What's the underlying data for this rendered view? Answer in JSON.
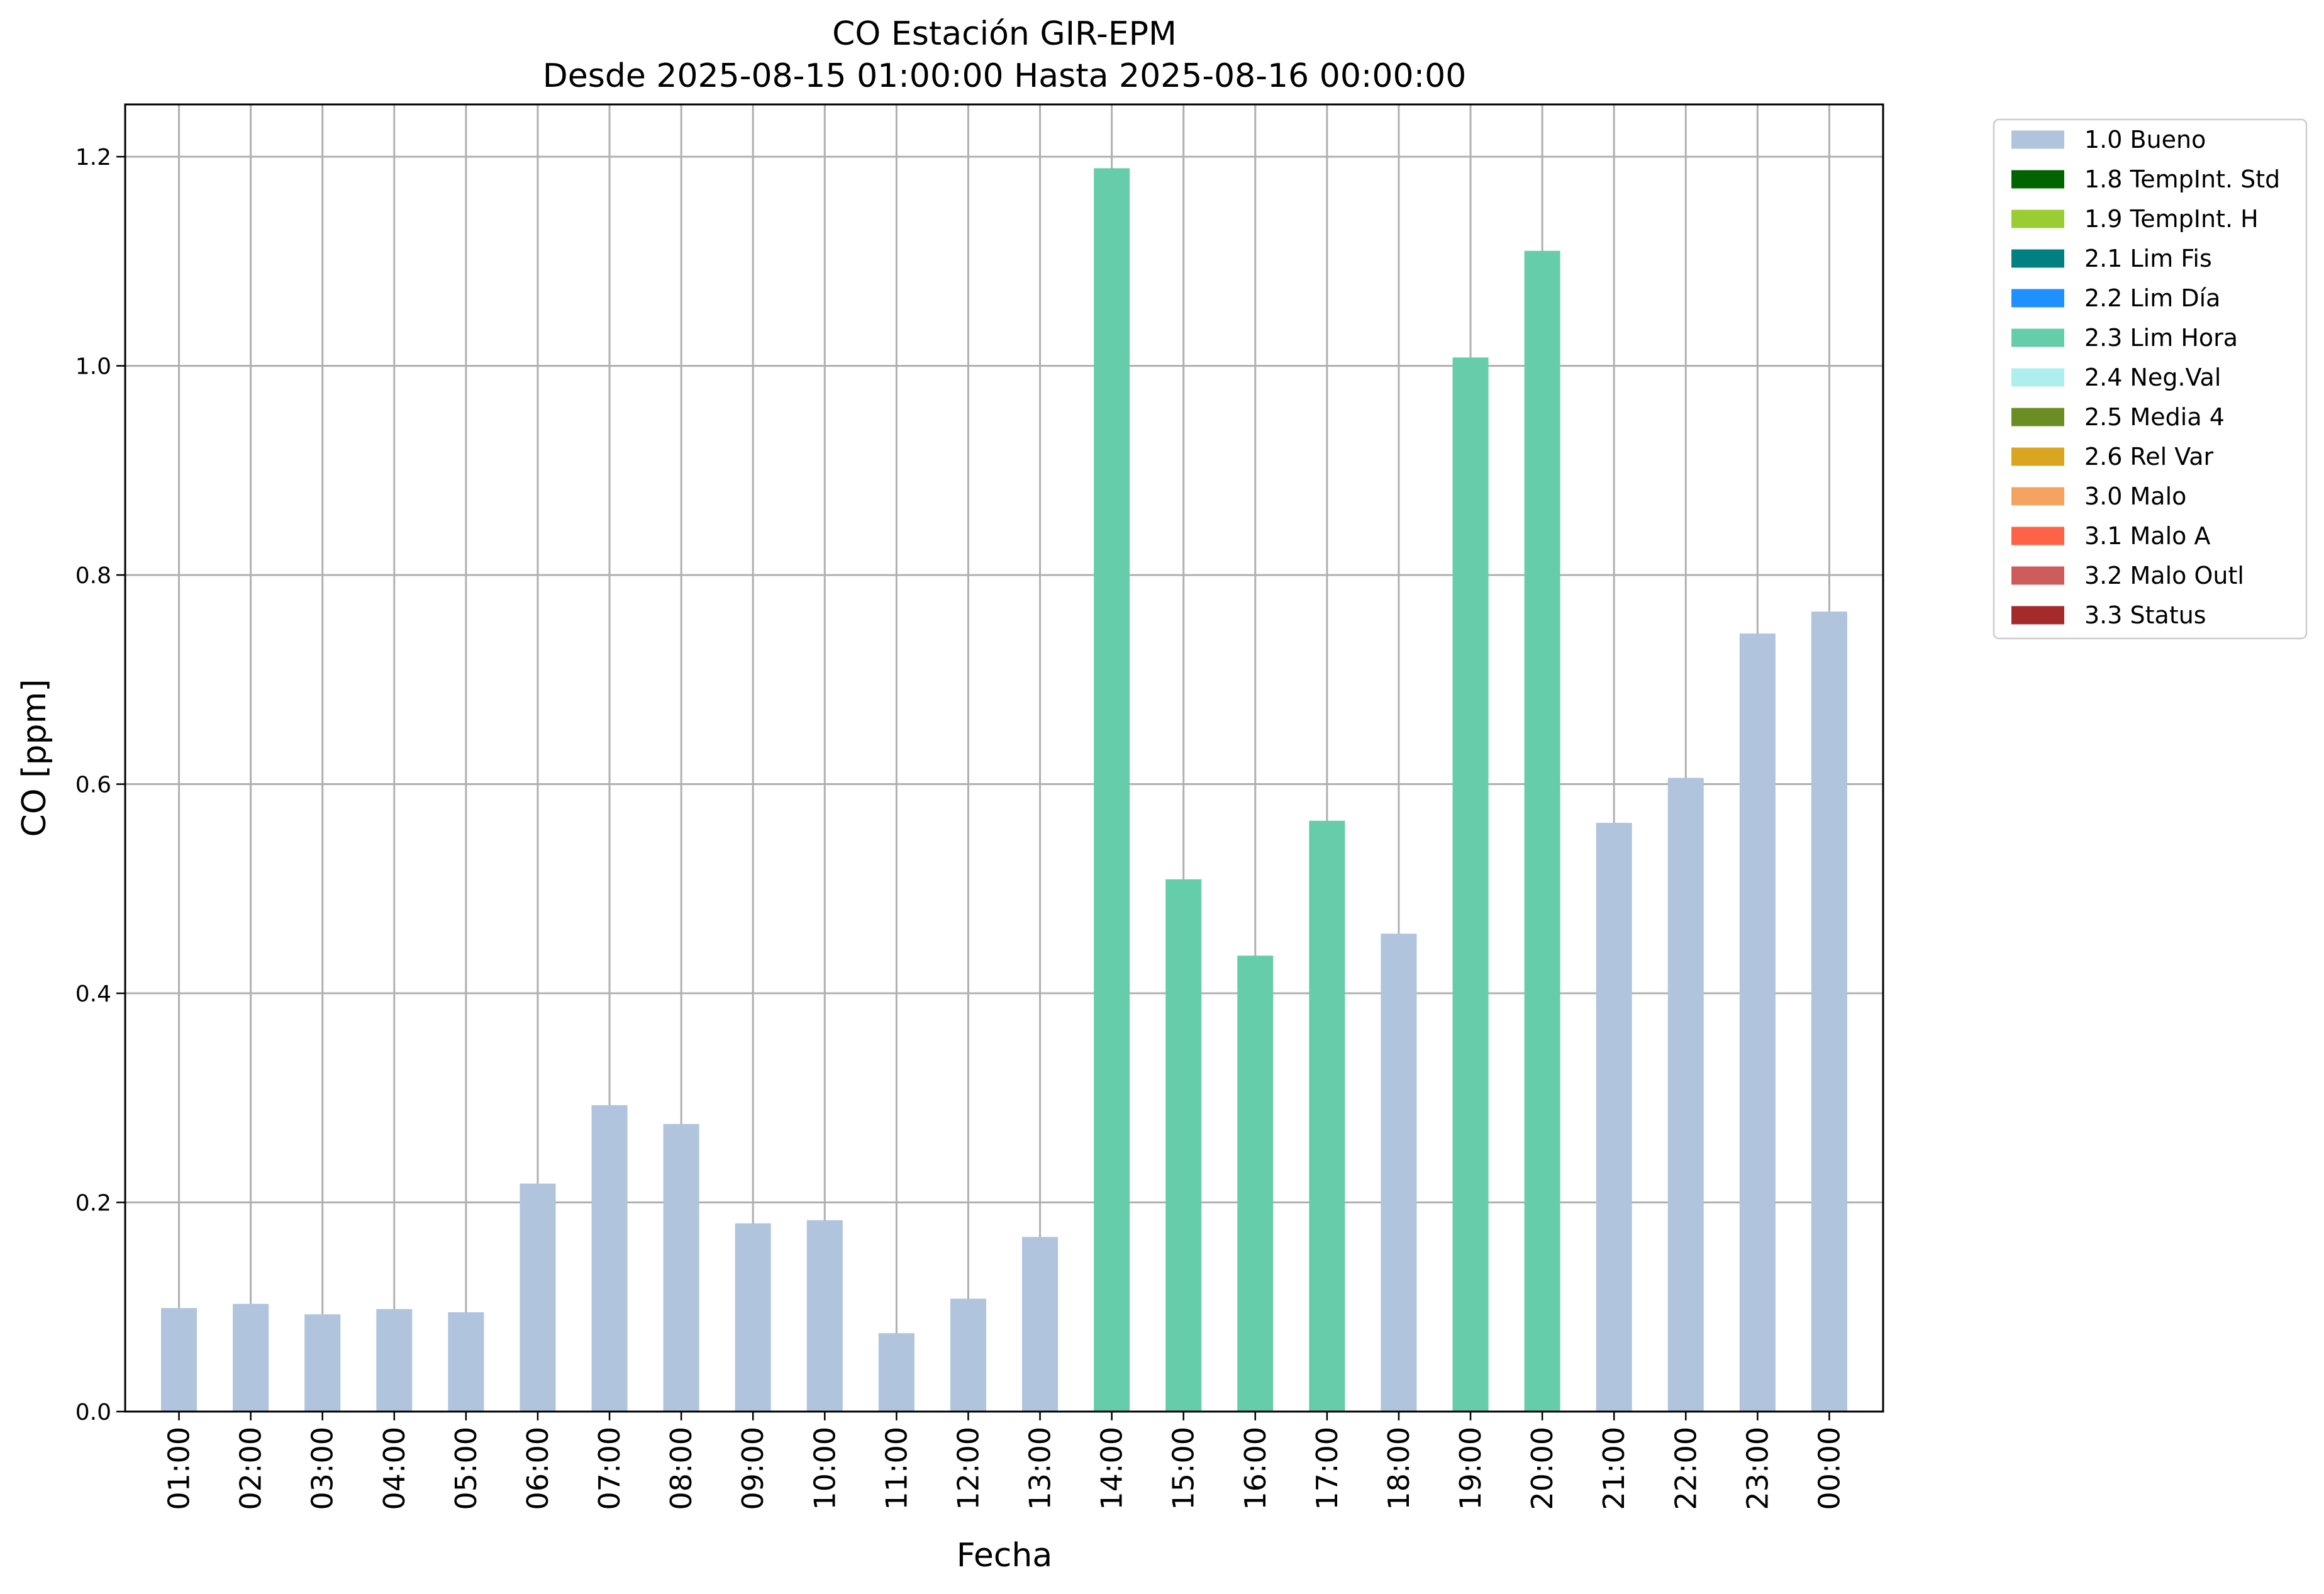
{
  "chart_data": {
    "type": "bar",
    "title": "CO Estación GIR-EPM",
    "subtitle": "Desde 2025-08-15 01:00:00 Hasta 2025-08-16 00:00:00",
    "xlabel": "Fecha",
    "ylabel": "CO [ppm]",
    "ylim": [
      0,
      1.25
    ],
    "yticks": [
      "0.0",
      "0.2",
      "0.4",
      "0.6",
      "0.8",
      "1.0",
      "1.2"
    ],
    "grid": true,
    "legend_position": "outside-top-right",
    "categories": [
      "01:00",
      "02:00",
      "03:00",
      "04:00",
      "05:00",
      "06:00",
      "07:00",
      "08:00",
      "09:00",
      "10:00",
      "11:00",
      "12:00",
      "13:00",
      "14:00",
      "15:00",
      "16:00",
      "17:00",
      "18:00",
      "19:00",
      "20:00",
      "21:00",
      "22:00",
      "23:00",
      "00:00"
    ],
    "values": [
      0.099,
      0.103,
      0.093,
      0.098,
      0.095,
      0.218,
      0.293,
      0.275,
      0.18,
      0.183,
      0.075,
      0.108,
      0.167,
      1.189,
      0.509,
      0.436,
      0.565,
      0.457,
      1.008,
      1.11,
      0.563,
      0.606,
      0.744,
      0.765
    ],
    "flags": [
      "1.0 Bueno",
      "1.0 Bueno",
      "1.0 Bueno",
      "1.0 Bueno",
      "1.0 Bueno",
      "1.0 Bueno",
      "1.0 Bueno",
      "1.0 Bueno",
      "1.0 Bueno",
      "1.0 Bueno",
      "1.0 Bueno",
      "1.0 Bueno",
      "1.0 Bueno",
      "2.3 Lim Hora",
      "2.3 Lim Hora",
      "2.3 Lim Hora",
      "2.3 Lim Hora",
      "1.0 Bueno",
      "2.3 Lim Hora",
      "2.3 Lim Hora",
      "1.0 Bueno",
      "1.0 Bueno",
      "1.0 Bueno",
      "1.0 Bueno"
    ],
    "legend": [
      {
        "name": "1.0 Bueno",
        "color": "#b0c4de"
      },
      {
        "name": "1.8 TempInt. Std",
        "color": "#006400"
      },
      {
        "name": "1.9 TempInt. H",
        "color": "#9acd32"
      },
      {
        "name": "2.1 Lim Fis",
        "color": "#008080"
      },
      {
        "name": "2.2 Lim Día",
        "color": "#1e90ff"
      },
      {
        "name": "2.3 Lim Hora",
        "color": "#66cdaa"
      },
      {
        "name": "2.4 Neg.Val",
        "color": "#afeeee"
      },
      {
        "name": "2.5 Media 4",
        "color": "#6b8e23"
      },
      {
        "name": "2.6 Rel Var",
        "color": "#daa520"
      },
      {
        "name": "3.0 Malo",
        "color": "#f4a460"
      },
      {
        "name": "3.1 Malo A",
        "color": "#ff6347"
      },
      {
        "name": "3.2 Malo Outl",
        "color": "#cd5c5c"
      },
      {
        "name": "3.3 Status",
        "color": "#a52a2a"
      }
    ]
  }
}
